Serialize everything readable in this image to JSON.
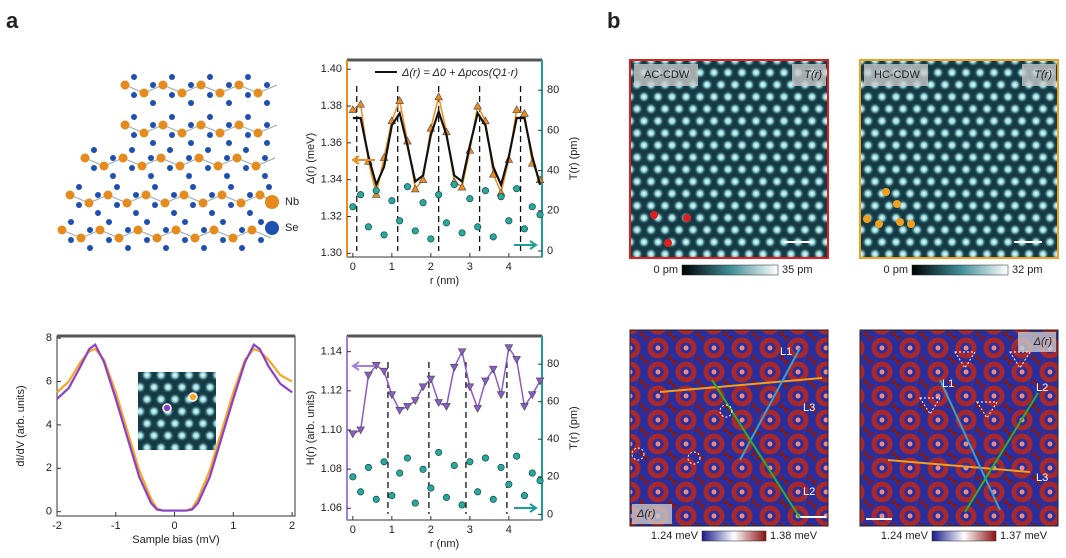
{
  "figure": {
    "panel_a": "a",
    "panel_b": "b"
  },
  "structure": {
    "labels": [
      "Nb",
      "Se"
    ]
  },
  "maps": [
    {
      "label": "AC-CDW",
      "channel": "T(r)",
      "colorbar": [
        "0 pm",
        "35 pm"
      ]
    },
    {
      "label": "HC-CDW",
      "channel": "T(r)",
      "colorbar": [
        "0 pm",
        "32 pm"
      ]
    },
    {
      "channel": "Δ(r)",
      "colorbar": [
        "1.24 meV",
        "1.38 meV"
      ],
      "vectors": [
        "L1",
        "L3",
        "L2"
      ]
    },
    {
      "channel": "Δ(r)",
      "colorbar": [
        "1.24 meV",
        "1.37 meV"
      ],
      "vectors": [
        "L1",
        "L2",
        "L3"
      ]
    }
  ],
  "chart_data": [
    {
      "type": "line",
      "xlabel": "r (nm)",
      "ylabel": "Δ(r) (meV)",
      "y2label": "T(r) (pm)",
      "x": [
        0,
        0.2,
        0.4,
        0.6,
        0.8,
        1.0,
        1.2,
        1.4,
        1.6,
        1.8,
        2.0,
        2.2,
        2.4,
        2.6,
        2.8,
        3.0,
        3.2,
        3.4,
        3.6,
        3.8,
        4.0,
        4.2,
        4.4,
        4.6,
        4.8
      ],
      "xlim": [
        -0.15,
        4.85
      ],
      "xticks": [
        0,
        1,
        2,
        3,
        4
      ],
      "ylim": [
        1.298,
        1.405
      ],
      "yticks": [
        {
          "value": 1.3,
          "label": "1.30"
        },
        1.32,
        1.34,
        1.36,
        1.38,
        {
          "value": 1.4,
          "label": "1.40"
        }
      ],
      "y2lim": [
        -3,
        95
      ],
      "y2ticks": [
        0,
        20,
        40,
        60,
        80
      ],
      "y_axis_color": "#f08c1e",
      "y2_axis_color": "#1a9e96",
      "vlines": [
        0.1,
        1.15,
        2.2,
        3.25,
        4.3
      ],
      "series": [
        {
          "color": "#f08c1e",
          "marker": "triangle-up",
          "connect": true,
          "values": [
            1.378,
            1.381,
            1.35,
            1.332,
            1.352,
            1.372,
            1.383,
            1.361,
            1.335,
            1.34,
            1.368,
            1.385,
            1.366,
            1.339,
            1.336,
            1.356,
            1.38,
            1.372,
            1.343,
            1.333,
            1.351,
            1.378,
            1.376,
            1.349,
            1.34
          ]
        },
        {
          "name": "Δ(r) = Δ0 + Δpcos(Q1·r)",
          "color": "#111111",
          "values": [
            1.3735,
            1.3735,
            1.3526,
            1.3372,
            1.347,
            1.3695,
            1.3761,
            1.3585,
            1.339,
            1.3423,
            1.3643,
            1.377,
            1.3643,
            1.3423,
            1.339,
            1.3585,
            1.3761,
            1.3695,
            1.347,
            1.3372,
            1.3526,
            1.3735,
            1.3735,
            1.3526,
            1.3372
          ]
        },
        {
          "color": "#2ba89e",
          "marker": "circle",
          "axis": "y2",
          "values": [
            22,
            28,
            12,
            30,
            8,
            25,
            15,
            32,
            10,
            24,
            6,
            28,
            14,
            33,
            9,
            26,
            12,
            30,
            7,
            27,
            15,
            31,
            11,
            22,
            18
          ]
        }
      ]
    },
    {
      "type": "line",
      "xlabel": "Sample bias (mV)",
      "ylabel": "dI/dV (arb. units)",
      "x": [
        -2,
        -1.8,
        -1.6,
        -1.45,
        -1.35,
        -1.2,
        -1.0,
        -0.8,
        -0.6,
        -0.4,
        -0.3,
        -0.2,
        0,
        0.2,
        0.3,
        0.4,
        0.6,
        0.8,
        1.0,
        1.2,
        1.35,
        1.45,
        1.6,
        1.8,
        2
      ],
      "xlim": [
        -2,
        2.05
      ],
      "xticks": [
        -2,
        -1,
        0,
        1,
        2
      ],
      "ylim": [
        -0.2,
        8.1
      ],
      "yticks": [
        0,
        2,
        4,
        6,
        8
      ],
      "series": [
        {
          "color": "#f5a623",
          "values": [
            5.5,
            6.0,
            6.9,
            7.4,
            7.5,
            7.0,
            5.5,
            3.7,
            1.9,
            0.6,
            0.15,
            0.05,
            0.05,
            0.05,
            0.15,
            0.6,
            1.9,
            3.7,
            5.5,
            7.0,
            7.5,
            7.4,
            7.0,
            6.3,
            6.0
          ]
        },
        {
          "color": "#8a3fd1",
          "values": [
            5.2,
            5.7,
            6.7,
            7.5,
            7.7,
            6.9,
            5.2,
            3.4,
            1.6,
            0.4,
            0.1,
            0.05,
            0.05,
            0.05,
            0.1,
            0.4,
            1.6,
            3.4,
            5.2,
            6.9,
            7.7,
            7.5,
            6.7,
            5.9,
            5.5
          ]
        }
      ]
    },
    {
      "type": "line",
      "xlabel": "r (nm)",
      "ylabel": "H(r) (arb. units)",
      "y2label": "T(r) (pm)",
      "x": [
        0,
        0.2,
        0.4,
        0.6,
        0.8,
        1.0,
        1.2,
        1.4,
        1.6,
        1.8,
        2.0,
        2.2,
        2.4,
        2.6,
        2.8,
        3.0,
        3.2,
        3.4,
        3.6,
        3.8,
        4.0,
        4.2,
        4.4,
        4.6,
        4.8
      ],
      "xlim": [
        -0.15,
        4.85
      ],
      "xticks": [
        0,
        1,
        2,
        3,
        4
      ],
      "ylim": [
        1.054,
        1.148
      ],
      "yticks": [
        1.06,
        1.08,
        {
          "value": 1.1,
          "label": "1.10"
        },
        1.12,
        1.14
      ],
      "y2lim": [
        -3,
        95
      ],
      "y2ticks": [
        0,
        20,
        40,
        60,
        80
      ],
      "y_axis_color": "#a27fd8",
      "y2_axis_color": "#1a9e96",
      "vlines": [
        0.9,
        1.95,
        2.9,
        3.95
      ],
      "series": [
        {
          "color": "#8a5cc7",
          "marker": "triangle-down",
          "connect": true,
          "values": [
            1.098,
            1.1,
            1.128,
            1.133,
            1.13,
            1.118,
            1.11,
            1.112,
            1.115,
            1.122,
            1.126,
            1.114,
            1.112,
            1.132,
            1.14,
            1.122,
            1.111,
            1.125,
            1.131,
            1.118,
            1.142,
            1.136,
            1.112,
            1.118,
            1.125
          ]
        },
        {
          "color": "#2ba89e",
          "marker": "circle",
          "axis": "y2",
          "values": [
            20,
            12,
            25,
            8,
            28,
            10,
            22,
            30,
            6,
            24,
            14,
            33,
            9,
            26,
            5,
            28,
            12,
            30,
            8,
            25,
            16,
            31,
            10,
            22,
            18
          ]
        }
      ]
    }
  ]
}
